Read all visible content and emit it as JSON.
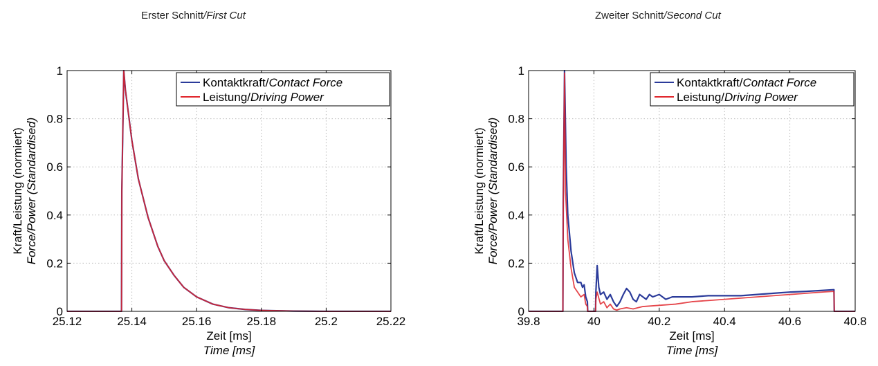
{
  "captions": {
    "first": {
      "main": "Erster Schnitt",
      "sub": "/First Cut"
    },
    "second": {
      "main": "Zweiter Schnitt",
      "sub": "/Second Cut"
    }
  },
  "chart_data": [
    {
      "type": "line",
      "title": "Erster Schnitt/First Cut",
      "xlabel": "Zeit [ms]",
      "xlabel_sub": "Time [ms]",
      "ylabel": "Kraft/Leistung (normiert)",
      "ylabel_sub": "Force/Power (Standardised)",
      "xlim": [
        25.12,
        25.22
      ],
      "ylim": [
        0,
        1
      ],
      "xticks": [
        25.12,
        25.14,
        25.16,
        25.18,
        25.2,
        25.22
      ],
      "xtick_labels": [
        "25.12",
        "25.14",
        "25.16",
        "25.18",
        "25.2",
        "25.22"
      ],
      "yticks": [
        0,
        0.2,
        0.4,
        0.6,
        0.8,
        1
      ],
      "ytick_labels": [
        "0",
        "0.2",
        "0.4",
        "0.6",
        "0.8",
        "1"
      ],
      "grid": true,
      "legend_position": "top-right",
      "series": [
        {
          "name": "Kontaktkraft/Contact Force",
          "name_main": "Kontaktkraft/",
          "name_sub": "Contact Force",
          "color": "#2b3b9a",
          "x": [
            25.12,
            25.1368,
            25.1369,
            25.1375,
            25.138,
            25.14,
            25.142,
            25.145,
            25.148,
            25.15,
            25.153,
            25.156,
            25.16,
            25.165,
            25.17,
            25.175,
            25.18,
            25.19,
            25.2,
            25.21,
            25.22
          ],
          "y": [
            0.0,
            0.0,
            0.5,
            1.0,
            0.92,
            0.71,
            0.55,
            0.39,
            0.27,
            0.21,
            0.15,
            0.1,
            0.06,
            0.03,
            0.015,
            0.008,
            0.004,
            0.001,
            0.0,
            0.0,
            0.0
          ]
        },
        {
          "name": "Leistung/Driving Power",
          "name_main": "Leistung/",
          "name_sub": "Driving Power",
          "color": "#e0242a",
          "x": [
            25.12,
            25.1368,
            25.1369,
            25.1375,
            25.138,
            25.14,
            25.142,
            25.145,
            25.148,
            25.15,
            25.153,
            25.156,
            25.16,
            25.165,
            25.17,
            25.175,
            25.18,
            25.19,
            25.2,
            25.21,
            25.22
          ],
          "y": [
            0.0,
            0.0,
            0.5,
            1.0,
            0.92,
            0.71,
            0.55,
            0.39,
            0.27,
            0.21,
            0.15,
            0.1,
            0.06,
            0.03,
            0.015,
            0.008,
            0.004,
            0.001,
            0.0,
            0.0,
            0.0
          ]
        }
      ]
    },
    {
      "type": "line",
      "title": "Zweiter Schnitt/Second Cut",
      "xlabel": "Zeit [ms]",
      "xlabel_sub": "Time [ms]",
      "ylabel": "Kraft/Leistung (normiert)",
      "ylabel_sub": "Force/Power (Standardised)",
      "xlim": [
        39.8,
        40.8
      ],
      "ylim": [
        0,
        1
      ],
      "xticks": [
        39.8,
        40,
        40.2,
        40.4,
        40.6,
        40.8
      ],
      "xtick_labels": [
        "39.8",
        "40",
        "40.2",
        "40.4",
        "40.6",
        "40.8"
      ],
      "yticks": [
        0,
        0.2,
        0.4,
        0.6,
        0.8,
        1
      ],
      "ytick_labels": [
        "0",
        "0.2",
        "0.4",
        "0.6",
        "0.8",
        "1"
      ],
      "grid": true,
      "legend_position": "top-right",
      "series": [
        {
          "name": "Kontaktkraft/Contact Force",
          "name_main": "Kontaktkraft/",
          "name_sub": "Contact Force",
          "color": "#2b3b9a",
          "x": [
            39.8,
            39.905,
            39.906,
            39.91,
            39.915,
            39.92,
            39.93,
            39.94,
            39.95,
            39.96,
            39.965,
            39.97,
            39.975,
            39.98,
            39.981,
            40.0,
            40.005,
            40.006,
            40.01,
            40.015,
            40.02,
            40.03,
            40.04,
            40.05,
            40.06,
            40.07,
            40.08,
            40.09,
            40.1,
            40.11,
            40.12,
            40.13,
            40.14,
            40.15,
            40.16,
            40.17,
            40.18,
            40.2,
            40.22,
            40.24,
            40.26,
            40.3,
            40.35,
            40.4,
            40.45,
            40.5,
            40.55,
            40.6,
            40.65,
            40.7,
            40.735,
            40.736,
            40.8
          ],
          "y": [
            0.0,
            0.0,
            0.45,
            1.0,
            0.6,
            0.4,
            0.25,
            0.16,
            0.12,
            0.12,
            0.1,
            0.11,
            0.06,
            0.04,
            0.0,
            0.0,
            0.0,
            0.08,
            0.19,
            0.1,
            0.07,
            0.08,
            0.05,
            0.07,
            0.04,
            0.02,
            0.04,
            0.07,
            0.095,
            0.08,
            0.05,
            0.04,
            0.07,
            0.06,
            0.05,
            0.07,
            0.06,
            0.07,
            0.05,
            0.06,
            0.06,
            0.06,
            0.065,
            0.065,
            0.065,
            0.07,
            0.075,
            0.08,
            0.083,
            0.087,
            0.09,
            0.0,
            0.0
          ]
        },
        {
          "name": "Leistung/Driving Power",
          "name_main": "Leistung/",
          "name_sub": "Driving Power",
          "color": "#e0242a",
          "x": [
            39.8,
            39.905,
            39.906,
            39.91,
            39.913,
            39.92,
            39.93,
            39.94,
            39.95,
            39.96,
            39.97,
            39.975,
            39.98,
            39.981,
            40.0,
            40.005,
            40.006,
            40.01,
            40.02,
            40.03,
            40.04,
            40.05,
            40.06,
            40.07,
            40.08,
            40.1,
            40.12,
            40.15,
            40.2,
            40.25,
            40.3,
            40.35,
            40.4,
            40.45,
            40.5,
            40.55,
            40.6,
            40.65,
            40.7,
            40.735,
            40.736,
            40.8
          ],
          "y": [
            0.0,
            0.0,
            0.4,
            0.99,
            0.5,
            0.3,
            0.18,
            0.1,
            0.08,
            0.06,
            0.07,
            0.03,
            0.02,
            0.0,
            0.0,
            0.0,
            0.05,
            0.08,
            0.03,
            0.04,
            0.015,
            0.03,
            0.01,
            0.005,
            0.01,
            0.015,
            0.01,
            0.02,
            0.025,
            0.03,
            0.04,
            0.045,
            0.05,
            0.055,
            0.06,
            0.065,
            0.07,
            0.075,
            0.08,
            0.083,
            0.0,
            0.0
          ]
        }
      ]
    }
  ]
}
